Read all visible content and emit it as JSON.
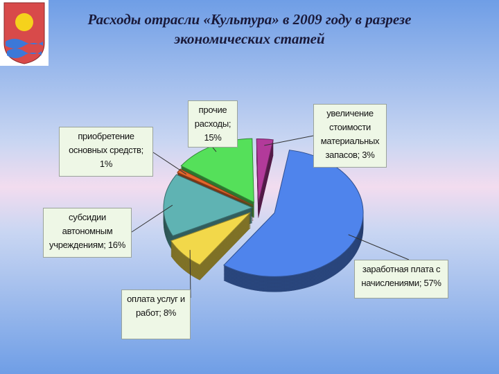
{
  "chart_data": {
    "type": "pie",
    "title": "Расходы отрасли «Культура» в 2009 году в разрезе экономических статей",
    "values": [
      3,
      57,
      8,
      16,
      1,
      15
    ],
    "value_labels": [
      "увеличение стоимости материальных запасов; 3%",
      "заработная плата с начислениями; 57%",
      "оплата услуг и работ; 8%",
      "субсидии автономным учреждениям; 16%",
      "приобретение основных средств; 1%",
      "прочие расходы; 15%"
    ],
    "colors": [
      "#b23a9a",
      "#4f84ec",
      "#f2d84a",
      "#5fb3b3",
      "#e4662a",
      "#55e05a"
    ]
  }
}
